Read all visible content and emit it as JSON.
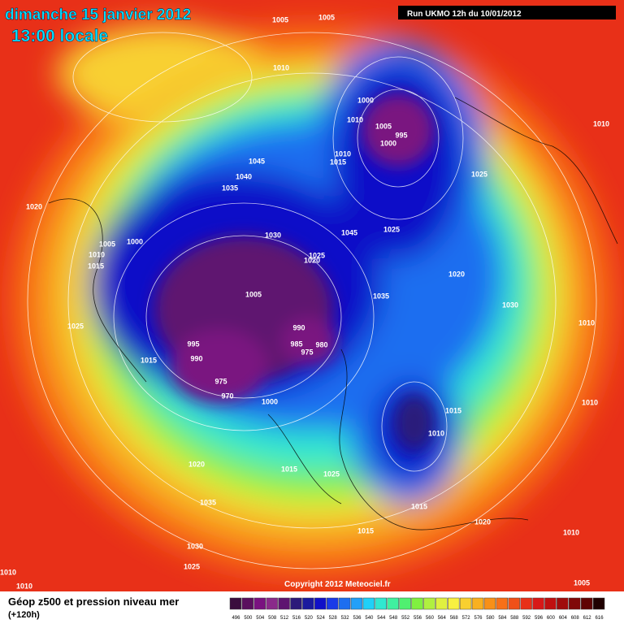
{
  "header": {
    "date": "dimanche 15 janvier 2012",
    "time": "13:00 locale",
    "run": "Run UKMO 12h du 10/01/2012"
  },
  "copyright": "Copyright 2012 Meteociel.fr",
  "footer": {
    "title": "Géop z500 et pression niveau mer",
    "lead": "(+120h)"
  },
  "legend": {
    "values": [
      496,
      500,
      504,
      508,
      512,
      516,
      520,
      524,
      528,
      532,
      536,
      540,
      544,
      548,
      552,
      556,
      560,
      564,
      568,
      572,
      576,
      580,
      584,
      588,
      592,
      596,
      600,
      604,
      608,
      612,
      616
    ],
    "colors": [
      "#3a0d3e",
      "#5a0f5e",
      "#7a1280",
      "#8a2a8a",
      "#5e1470",
      "#2c1a7a",
      "#1a1a9e",
      "#1010c8",
      "#1a3ae8",
      "#1e6ef0",
      "#22a0f8",
      "#20d0f8",
      "#30e8d0",
      "#40f0a0",
      "#50f070",
      "#80f040",
      "#b0f040",
      "#e0f040",
      "#f8f040",
      "#f8d030",
      "#f8b020",
      "#f89018",
      "#f87018",
      "#f05018",
      "#e83018",
      "#d81818",
      "#c01010",
      "#a00c0c",
      "#800808",
      "#600404",
      "#200000"
    ]
  },
  "isobar_labels": [
    1005,
    1005,
    1010,
    1000,
    1010,
    1005,
    995,
    1000,
    1010,
    1015,
    1010,
    1045,
    1040,
    1035,
    1025,
    1020,
    1000,
    1005,
    1010,
    1015,
    1030,
    1045,
    1025,
    1025,
    1020,
    1020,
    1005,
    1035,
    1030,
    1025,
    990,
    1010,
    995,
    985,
    980,
    975,
    1015,
    990,
    975,
    970,
    1000,
    1015,
    1010,
    1010,
    1020,
    1015,
    1025,
    1035,
    1015,
    1020,
    1015,
    1030,
    1010,
    1025,
    1010,
    1010,
    1005
  ]
}
